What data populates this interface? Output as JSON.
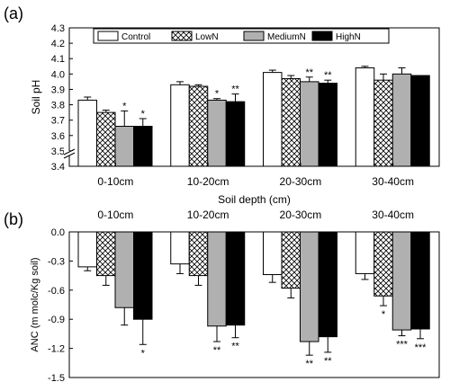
{
  "chart_data": [
    {
      "panel": "(a)",
      "type": "bar",
      "ylabel": "Soil pH",
      "xlabel": "Soil depth (cm)",
      "categories": [
        "0-10cm",
        "10-20cm",
        "20-30cm",
        "30-40cm"
      ],
      "ylim": [
        3.4,
        4.3
      ],
      "yticks": [
        "3.4",
        "3.5",
        "3.6",
        "3.7",
        "3.8",
        "3.9",
        "4.0",
        "4.1",
        "4.2",
        "4.3"
      ],
      "axis_break": true,
      "legend_position": "top",
      "series": [
        {
          "name": "Control",
          "pattern": "white",
          "values": [
            3.83,
            3.93,
            4.01,
            4.04
          ],
          "errors": [
            0.02,
            0.02,
            0.015,
            0.01
          ],
          "marks": [
            "",
            "",
            "",
            ""
          ]
        },
        {
          "name": "LowN",
          "pattern": "crosshatch",
          "values": [
            3.75,
            3.92,
            3.97,
            3.96
          ],
          "errors": [
            0.015,
            0.01,
            0.02,
            0.04
          ],
          "marks": [
            "",
            "",
            "",
            ""
          ]
        },
        {
          "name": "MediumN",
          "pattern": "gray",
          "values": [
            3.66,
            3.83,
            3.95,
            4.0
          ],
          "errors": [
            0.1,
            0.01,
            0.03,
            0.04
          ],
          "marks": [
            "*",
            "*",
            "**",
            ""
          ]
        },
        {
          "name": "HighN",
          "pattern": "black",
          "values": [
            3.66,
            3.82,
            3.94,
            3.99
          ],
          "errors": [
            0.05,
            0.05,
            0.02,
            0.0
          ],
          "marks": [
            "*",
            "**",
            "**",
            ""
          ]
        }
      ]
    },
    {
      "panel": "(b)",
      "type": "bar",
      "ylabel": "ANC (m molc/Kg soil)",
      "categories": [
        "0-10cm",
        "10-20cm",
        "20-30cm",
        "30-40cm"
      ],
      "ylim": [
        -1.5,
        0.0
      ],
      "yticks": [
        "0.0",
        "-0.3",
        "-0.6",
        "-0.9",
        "-1.2",
        "-1.5"
      ],
      "series": [
        {
          "name": "Control",
          "values": [
            -0.36,
            -0.33,
            -0.44,
            -0.43
          ],
          "errors": [
            0.04,
            0.1,
            0.08,
            0.06
          ],
          "marks": [
            "",
            "",
            "",
            ""
          ]
        },
        {
          "name": "LowN",
          "values": [
            -0.45,
            -0.45,
            -0.58,
            -0.66
          ],
          "errors": [
            0.1,
            0.1,
            0.1,
            0.1
          ],
          "marks": [
            "",
            "",
            "",
            "*"
          ]
        },
        {
          "name": "MediumN",
          "values": [
            -0.78,
            -0.97,
            -1.13,
            -1.01
          ],
          "errors": [
            0.18,
            0.16,
            0.14,
            0.06
          ],
          "marks": [
            "",
            "**",
            "**",
            "***"
          ]
        },
        {
          "name": "HighN",
          "values": [
            -0.9,
            -0.96,
            -1.08,
            -1.0
          ],
          "errors": [
            0.26,
            0.13,
            0.16,
            0.1
          ],
          "marks": [
            "*",
            "**",
            "**",
            "***"
          ]
        }
      ]
    }
  ]
}
